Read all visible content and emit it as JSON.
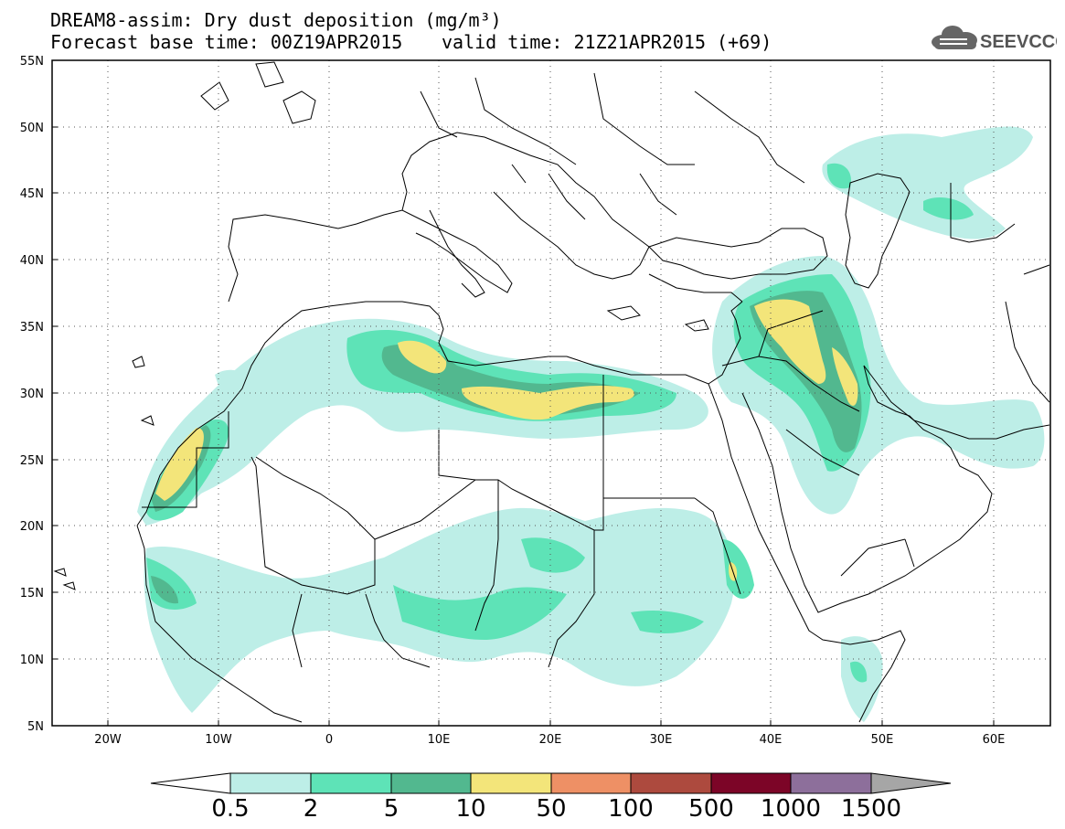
{
  "header": {
    "title_line1": "DREAM8-assim: Dry dust deposition (mg/m³)",
    "base_time": "Forecast base time: 00Z19APR2015",
    "valid_time": "valid time: 21Z21APR2015 (+69)",
    "logo_text": "SEEVCCC"
  },
  "map": {
    "lon_range": [
      -25,
      65
    ],
    "lat_range": [
      5,
      55
    ],
    "lat_labels": [
      "55N",
      "50N",
      "45N",
      "40N",
      "35N",
      "30N",
      "25N",
      "20N",
      "15N",
      "10N",
      "5N"
    ],
    "lon_labels": [
      "20W",
      "10W",
      "0",
      "10E",
      "20E",
      "30E",
      "40E",
      "50E",
      "60E"
    ],
    "gridlines": "dotted"
  },
  "colorbar": {
    "labels": [
      "0.5",
      "2",
      "5",
      "10",
      "50",
      "100",
      "500",
      "1000",
      "1500"
    ],
    "colors": [
      "#bdeee7",
      "#5ee3b7",
      "#52b88f",
      "#f3e57a",
      "#ee9065",
      "#ad4a3e",
      "#7c0527",
      "#8d6f9b"
    ],
    "over_color": "#a6a6a6",
    "under_color": "#ffffff"
  },
  "dust_colors": {
    "level1": "#bdeee7",
    "level2": "#5ee3b7",
    "level3": "#52b88f",
    "level4": "#f3e57a"
  }
}
